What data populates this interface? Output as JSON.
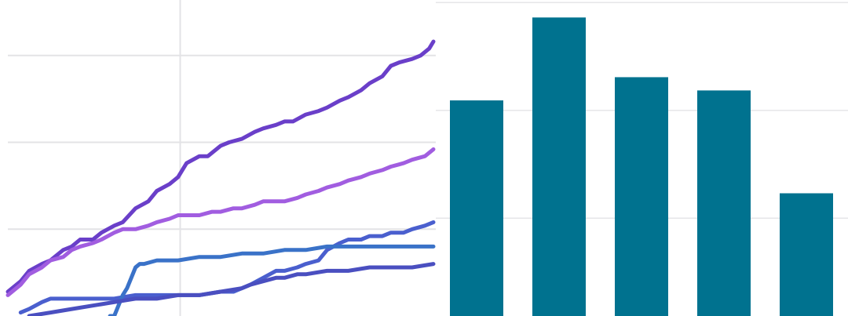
{
  "chart_data": [
    {
      "type": "line",
      "title": "",
      "xlabel": "",
      "ylabel": "",
      "grid": true,
      "legend": "none",
      "xlim": [
        0,
        100
      ],
      "ylim": [
        0,
        100
      ],
      "series": [
        {
          "color": "#6a3fc9",
          "points": [
            [
              0,
              7
            ],
            [
              3,
              10
            ],
            [
              5,
              13
            ],
            [
              8,
              15
            ],
            [
              10,
              16
            ],
            [
              13,
              19
            ],
            [
              15,
              20
            ],
            [
              17,
              22
            ],
            [
              20,
              22
            ],
            [
              22,
              24
            ],
            [
              25,
              26
            ],
            [
              27,
              27
            ],
            [
              30,
              31
            ],
            [
              33,
              33
            ],
            [
              35,
              36
            ],
            [
              38,
              38
            ],
            [
              40,
              40
            ],
            [
              42,
              44
            ],
            [
              45,
              46
            ],
            [
              47,
              46
            ],
            [
              50,
              49
            ],
            [
              52,
              50
            ],
            [
              55,
              51
            ],
            [
              58,
              53
            ],
            [
              60,
              54
            ],
            [
              63,
              55
            ],
            [
              65,
              56
            ],
            [
              67,
              56
            ],
            [
              70,
              58
            ],
            [
              73,
              59
            ],
            [
              75,
              60
            ],
            [
              78,
              62
            ],
            [
              80,
              63
            ],
            [
              83,
              65
            ],
            [
              85,
              67
            ],
            [
              88,
              69
            ],
            [
              90,
              72
            ],
            [
              92,
              73
            ],
            [
              95,
              74
            ],
            [
              97,
              75
            ],
            [
              99,
              77
            ],
            [
              100,
              79
            ]
          ]
        },
        {
          "color": "#a15de0",
          "points": [
            [
              0,
              6
            ],
            [
              3,
              9
            ],
            [
              5,
              12
            ],
            [
              8,
              14
            ],
            [
              10,
              16
            ],
            [
              13,
              17
            ],
            [
              15,
              19
            ],
            [
              17,
              20
            ],
            [
              20,
              21
            ],
            [
              22,
              22
            ],
            [
              25,
              24
            ],
            [
              27,
              25
            ],
            [
              30,
              25
            ],
            [
              33,
              26
            ],
            [
              35,
              27
            ],
            [
              38,
              28
            ],
            [
              40,
              29
            ],
            [
              43,
              29
            ],
            [
              45,
              29
            ],
            [
              48,
              30
            ],
            [
              50,
              30
            ],
            [
              53,
              31
            ],
            [
              55,
              31
            ],
            [
              58,
              32
            ],
            [
              60,
              33
            ],
            [
              63,
              33
            ],
            [
              65,
              33
            ],
            [
              68,
              34
            ],
            [
              70,
              35
            ],
            [
              73,
              36
            ],
            [
              75,
              37
            ],
            [
              78,
              38
            ],
            [
              80,
              39
            ],
            [
              83,
              40
            ],
            [
              85,
              41
            ],
            [
              88,
              42
            ],
            [
              90,
              43
            ],
            [
              93,
              44
            ],
            [
              95,
              45
            ],
            [
              98,
              46
            ],
            [
              100,
              48
            ]
          ]
        },
        {
          "color": "#4a5fce",
          "points": [
            [
              3,
              1
            ],
            [
              5,
              2
            ],
            [
              8,
              4
            ],
            [
              10,
              5
            ],
            [
              13,
              5
            ],
            [
              15,
              5
            ],
            [
              20,
              5
            ],
            [
              25,
              5
            ],
            [
              30,
              6
            ],
            [
              35,
              6
            ],
            [
              40,
              6
            ],
            [
              45,
              6
            ],
            [
              50,
              7
            ],
            [
              53,
              7
            ],
            [
              55,
              8
            ],
            [
              57,
              9
            ],
            [
              60,
              11
            ],
            [
              63,
              13
            ],
            [
              65,
              13
            ],
            [
              68,
              14
            ],
            [
              70,
              15
            ],
            [
              73,
              16
            ],
            [
              75,
              19
            ],
            [
              78,
              21
            ],
            [
              80,
              22
            ],
            [
              83,
              22
            ],
            [
              85,
              23
            ],
            [
              88,
              23
            ],
            [
              90,
              24
            ],
            [
              93,
              24
            ],
            [
              95,
              25
            ],
            [
              98,
              26
            ],
            [
              100,
              27
            ]
          ]
        },
        {
          "color": "#3a72c8",
          "points": [
            [
              24,
              0
            ],
            [
              25,
              0
            ],
            [
              26,
              3
            ],
            [
              27,
              6
            ],
            [
              28,
              8
            ],
            [
              29,
              11
            ],
            [
              30,
              14
            ],
            [
              31,
              15
            ],
            [
              32,
              15
            ],
            [
              35,
              16
            ],
            [
              40,
              16
            ],
            [
              45,
              17
            ],
            [
              50,
              17
            ],
            [
              55,
              18
            ],
            [
              60,
              18
            ],
            [
              65,
              19
            ],
            [
              70,
              19
            ],
            [
              75,
              20
            ],
            [
              80,
              20
            ],
            [
              85,
              20
            ],
            [
              90,
              20
            ],
            [
              95,
              20
            ],
            [
              100,
              20
            ]
          ]
        },
        {
          "color": "#4a4fc0",
          "points": [
            [
              5,
              0
            ],
            [
              10,
              1
            ],
            [
              15,
              2
            ],
            [
              20,
              3
            ],
            [
              25,
              4
            ],
            [
              30,
              5
            ],
            [
              35,
              5
            ],
            [
              40,
              6
            ],
            [
              45,
              6
            ],
            [
              50,
              7
            ],
            [
              55,
              8
            ],
            [
              57,
              9
            ],
            [
              60,
              10
            ],
            [
              63,
              11
            ],
            [
              65,
              11
            ],
            [
              68,
              12
            ],
            [
              70,
              12
            ],
            [
              75,
              13
            ],
            [
              80,
              13
            ],
            [
              85,
              14
            ],
            [
              90,
              14
            ],
            [
              95,
              14
            ],
            [
              100,
              15
            ]
          ]
        }
      ]
    },
    {
      "type": "bar",
      "title": "",
      "xlabel": "",
      "ylabel": "",
      "grid": true,
      "legend": "none",
      "color": "#00728f",
      "categories": [
        "",
        "",
        "",
        "",
        ""
      ],
      "values": [
        65,
        90,
        72,
        68,
        37
      ],
      "ylim": [
        0,
        100
      ]
    }
  ]
}
